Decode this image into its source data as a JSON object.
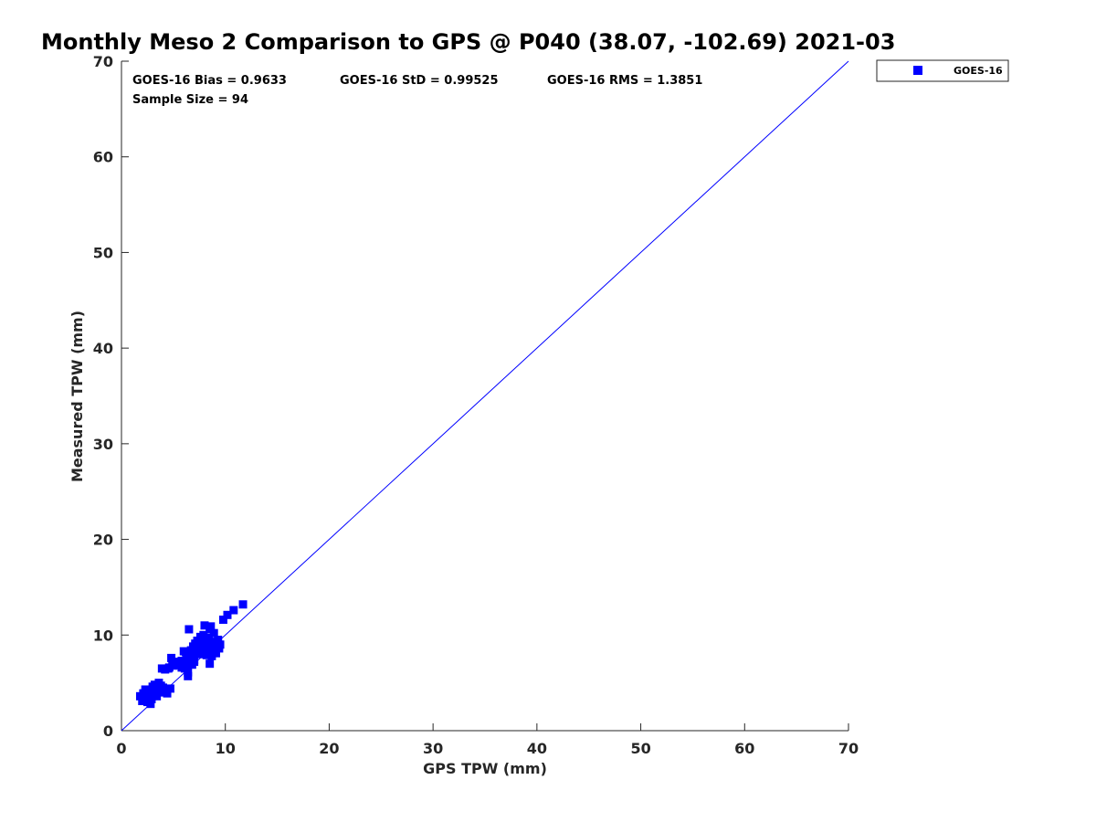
{
  "chart_data": {
    "type": "scatter",
    "title": "Monthly Meso 2 Comparison to GPS @ P040 (38.07, -102.69) 2021-03",
    "xlabel": "GPS TPW (mm)",
    "ylabel": "Measured TPW (mm)",
    "xlim": [
      0,
      70
    ],
    "ylim": [
      0,
      70
    ],
    "xticks": [
      0,
      10,
      20,
      30,
      40,
      50,
      60,
      70
    ],
    "yticks": [
      0,
      10,
      20,
      30,
      40,
      50,
      60,
      70
    ],
    "xtick_labels": [
      "0",
      "10",
      "20",
      "30",
      "40",
      "50",
      "60",
      "70"
    ],
    "ytick_labels": [
      "0",
      "10",
      "20",
      "30",
      "40",
      "50",
      "60",
      "70"
    ],
    "grid": false,
    "legend_position": "outside-top-right",
    "stats": {
      "bias": "GOES-16 Bias = 0.9633",
      "std": "GOES-16 StD = 0.99525",
      "rms": "GOES-16 RMS = 1.3851",
      "sample_size": "Sample Size = 94"
    },
    "reference_line": {
      "from": [
        0,
        0
      ],
      "to": [
        70,
        70
      ],
      "color": "#0000ff"
    },
    "series": [
      {
        "name": "GOES-16",
        "color": "#0000ff",
        "marker": "square",
        "points": [
          [
            1.8,
            3.6
          ],
          [
            2.0,
            3.1
          ],
          [
            2.1,
            3.9
          ],
          [
            2.2,
            3.4
          ],
          [
            2.3,
            4.3
          ],
          [
            2.4,
            3.7
          ],
          [
            2.5,
            3.0
          ],
          [
            2.6,
            3.5
          ],
          [
            2.7,
            4.1
          ],
          [
            2.8,
            2.8
          ],
          [
            2.9,
            3.3
          ],
          [
            3.0,
            4.6
          ],
          [
            3.1,
            3.9
          ],
          [
            3.2,
            4.8
          ],
          [
            3.3,
            4.2
          ],
          [
            3.4,
            3.6
          ],
          [
            3.5,
            4.4
          ],
          [
            3.6,
            5.0
          ],
          [
            3.7,
            4.0
          ],
          [
            3.8,
            4.7
          ],
          [
            3.9,
            6.5
          ],
          [
            4.0,
            4.5
          ],
          [
            4.2,
            6.4
          ],
          [
            4.4,
            3.9
          ],
          [
            4.6,
            6.6
          ],
          [
            4.7,
            4.4
          ],
          [
            4.8,
            7.6
          ],
          [
            4.9,
            7.1
          ],
          [
            5.0,
            6.8
          ],
          [
            5.2,
            7.0
          ],
          [
            5.4,
            7.2
          ],
          [
            5.6,
            6.9
          ],
          [
            5.8,
            7.3
          ],
          [
            6.0,
            8.3
          ],
          [
            6.1,
            6.5
          ],
          [
            6.2,
            7.0
          ],
          [
            6.3,
            7.5
          ],
          [
            6.4,
            5.7
          ],
          [
            6.4,
            6.1
          ],
          [
            6.5,
            10.6
          ],
          [
            6.5,
            8.0
          ],
          [
            6.6,
            7.8
          ],
          [
            6.7,
            8.4
          ],
          [
            6.8,
            6.9
          ],
          [
            6.9,
            8.8
          ],
          [
            7.0,
            7.4
          ],
          [
            7.1,
            9.1
          ],
          [
            7.2,
            8.6
          ],
          [
            7.3,
            9.4
          ],
          [
            7.4,
            8.2
          ],
          [
            7.5,
            9.0
          ],
          [
            7.6,
            9.8
          ],
          [
            7.7,
            8.7
          ],
          [
            7.8,
            9.2
          ],
          [
            7.9,
            10.0
          ],
          [
            8.0,
            11.0
          ],
          [
            8.0,
            8.4
          ],
          [
            8.1,
            9.5
          ],
          [
            8.2,
            7.9
          ],
          [
            8.3,
            8.8
          ],
          [
            8.4,
            9.7
          ],
          [
            8.5,
            7.0
          ],
          [
            8.5,
            10.6
          ],
          [
            8.6,
            9.1
          ],
          [
            8.7,
            7.8
          ],
          [
            8.8,
            8.5
          ],
          [
            8.9,
            10.2
          ],
          [
            9.0,
            9.3
          ],
          [
            9.1,
            8.1
          ],
          [
            9.2,
            8.9
          ],
          [
            9.3,
            9.5
          ],
          [
            9.4,
            8.6
          ],
          [
            9.5,
            9.0
          ],
          [
            8.6,
            10.9
          ],
          [
            9.8,
            11.6
          ],
          [
            10.2,
            12.1
          ],
          [
            10.8,
            12.6
          ],
          [
            11.7,
            13.2
          ],
          [
            7.0,
            7.2
          ],
          [
            6.0,
            7.1
          ],
          [
            5.5,
            6.9
          ],
          [
            4.5,
            6.5
          ],
          [
            3.4,
            4.1
          ],
          [
            2.4,
            3.2
          ],
          [
            7.6,
            8.0
          ],
          [
            8.1,
            8.6
          ],
          [
            9.0,
            8.4
          ],
          [
            8.4,
            8.1
          ],
          [
            6.8,
            7.6
          ],
          [
            7.3,
            8.2
          ],
          [
            5.8,
            6.6
          ],
          [
            3.0,
            3.7
          ],
          [
            2.2,
            3.9
          ],
          [
            6.2,
            8.2
          ]
        ]
      }
    ]
  }
}
